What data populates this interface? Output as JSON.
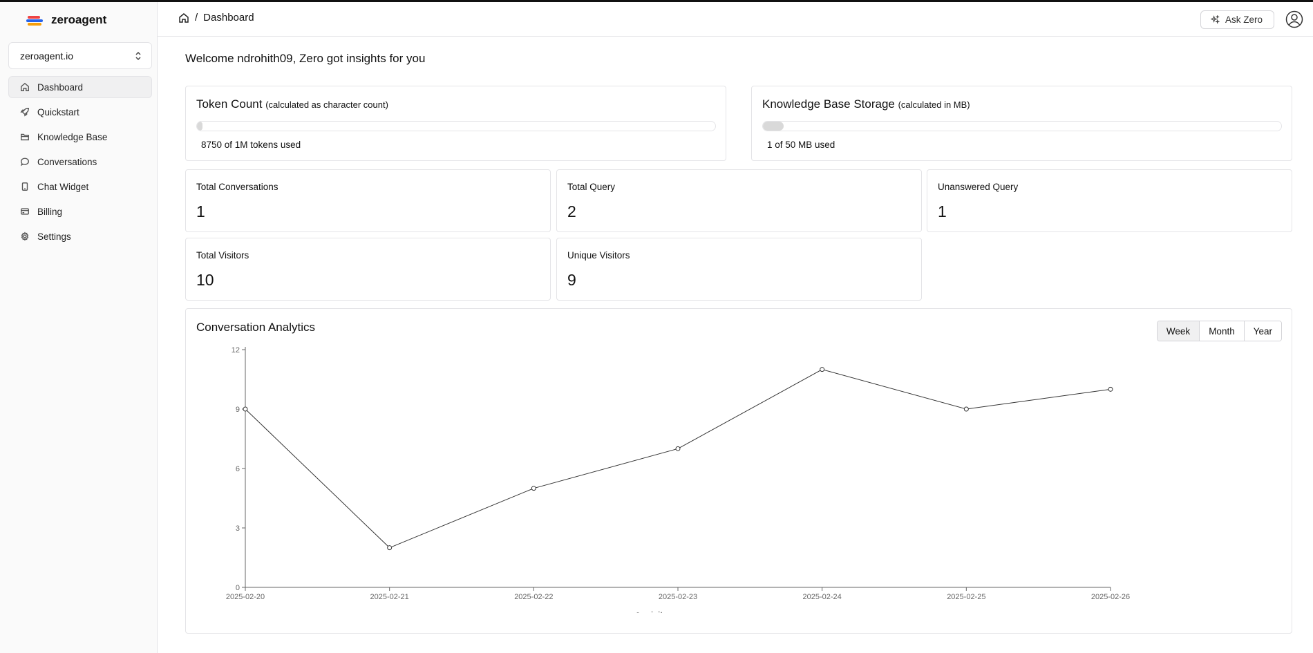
{
  "brand": {
    "name": "zeroagent",
    "logo_colors": [
      "#ef4444",
      "#2563eb",
      "#f59e0b"
    ]
  },
  "org_selector": {
    "value": "zeroagent.io"
  },
  "sidebar": {
    "items": [
      {
        "label": "Dashboard",
        "icon": "home-icon",
        "active": true
      },
      {
        "label": "Quickstart",
        "icon": "rocket-icon"
      },
      {
        "label": "Knowledge Base",
        "icon": "folder-icon"
      },
      {
        "label": "Conversations",
        "icon": "chat-icon"
      },
      {
        "label": "Chat Widget",
        "icon": "device-icon"
      },
      {
        "label": "Billing",
        "icon": "credit-card-icon"
      },
      {
        "label": "Settings",
        "icon": "gear-icon"
      }
    ]
  },
  "header": {
    "breadcrumb": "Dashboard",
    "ask_label": "Ask Zero"
  },
  "welcome": "Welcome ndrohith09, Zero got insights for you",
  "token_card": {
    "title": "Token Count",
    "subtitle": "(calculated as character count)",
    "usage": "8750 of 1M tokens used",
    "fraction": 0.00875
  },
  "storage_card": {
    "title": "Knowledge Base Storage",
    "subtitle": "(calculated in MB)",
    "usage": "1 of 50 MB used",
    "fraction": 0.02
  },
  "stats": {
    "total_conversations": {
      "label": "Total Conversations",
      "value": "1"
    },
    "total_query": {
      "label": "Total Query",
      "value": "2"
    },
    "unanswered_query": {
      "label": "Unanswered Query",
      "value": "1"
    },
    "total_visitors": {
      "label": "Total Visitors",
      "value": "10"
    },
    "unique_visitors": {
      "label": "Unique Visitors",
      "value": "9"
    }
  },
  "analytics": {
    "title": "Conversation Analytics",
    "periods": [
      "Week",
      "Month",
      "Year"
    ],
    "selected": "Week"
  },
  "chart_data": {
    "type": "line",
    "x": [
      "2025-02-20",
      "2025-02-21",
      "2025-02-22",
      "2025-02-23",
      "2025-02-24",
      "2025-02-25",
      "2025-02-26"
    ],
    "series": [
      {
        "name": "visitors",
        "values": [
          9,
          2,
          5,
          7,
          11,
          9,
          10
        ]
      }
    ],
    "ylim": [
      0,
      12
    ],
    "yticks": [
      0,
      3,
      6,
      9,
      12
    ],
    "legend": "bottom",
    "grid": false
  }
}
